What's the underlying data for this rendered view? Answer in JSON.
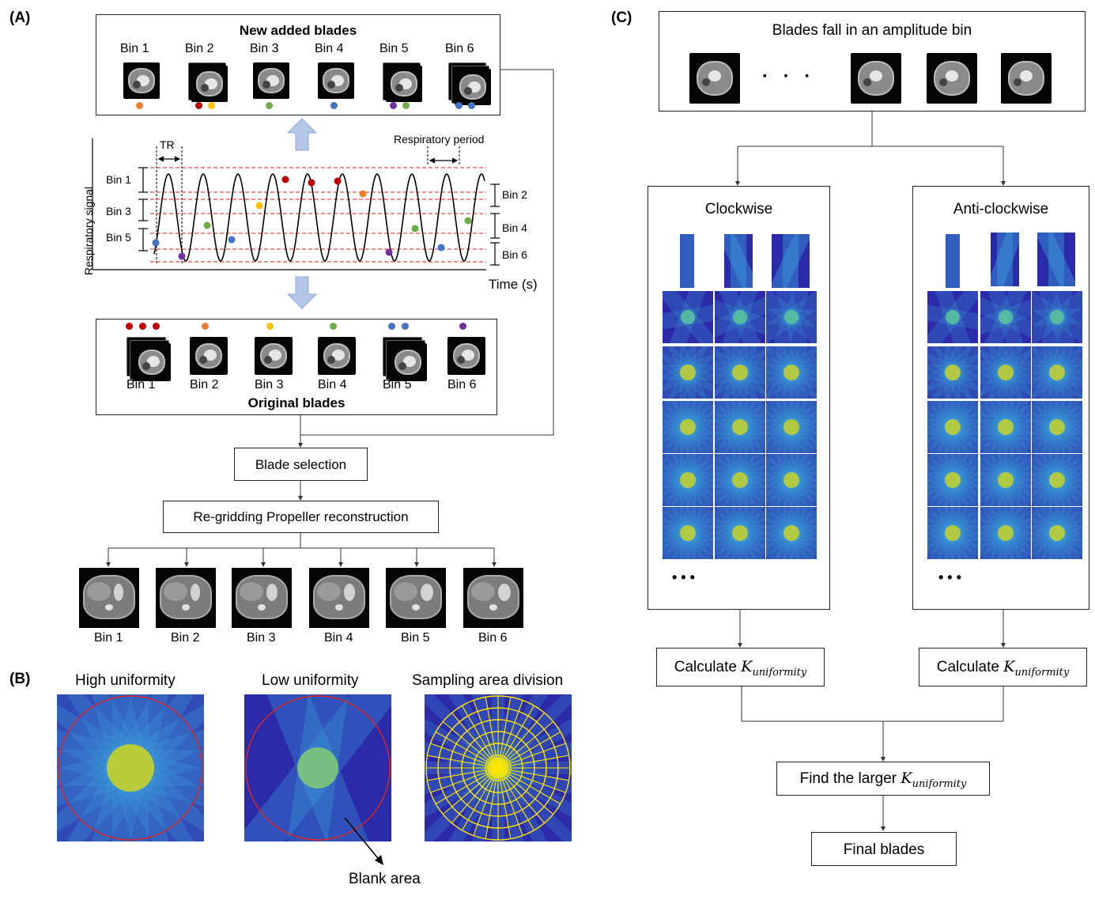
{
  "panels": {
    "a": "(A)",
    "b": "(B)",
    "c": "(C)"
  },
  "panel_a": {
    "new_blades_title": "New added blades",
    "new_bins": [
      "Bin 1",
      "Bin 2",
      "Bin 3",
      "Bin 4",
      "Bin 5",
      "Bin 6"
    ],
    "signal": {
      "ylabel": "Respiratory signal",
      "xlabel": "Time (s)",
      "tr": "TR",
      "period": "Respiratory period",
      "left_bins": [
        "Bin 1",
        "Bin 3",
        "Bin 5"
      ],
      "right_bins": [
        "Bin 2",
        "Bin 4",
        "Bin 6"
      ]
    },
    "original_blades_title": "Original blades",
    "orig_bins": [
      "Bin 1",
      "Bin 2",
      "Bin 3",
      "Bin 4",
      "Bin 5",
      "Bin 6"
    ],
    "blade_selection": "Blade selection",
    "regridding": "Re-gridding Propeller reconstruction",
    "recon_bins": [
      "Bin 1",
      "Bin 2",
      "Bin 3",
      "Bin 4",
      "Bin 5",
      "Bin 6"
    ]
  },
  "panel_b": {
    "high": "High uniformity",
    "low": "Low uniformity",
    "division": "Sampling area division",
    "blank": "Blank area"
  },
  "panel_c": {
    "top_title": "Blades fall in an amplitude bin",
    "ellipsis_dots": "·   ·   ·",
    "clockwise": "Clockwise",
    "anticlockwise": "Anti-clockwise",
    "more": "• • •",
    "calc_prefix": "Calculate ",
    "k_symbol": "K",
    "k_sub": "uniformity",
    "find_prefix": "Find the larger ",
    "final": "Final blades"
  },
  "colors": {
    "red": "#c00000",
    "orange": "#ed7d31",
    "yellow": "#ffc000",
    "green": "#70ad47",
    "blue": "#4472c4",
    "purple": "#7030a0",
    "arrow_fill": "#b4c7e7",
    "dashed": "#d62728",
    "kspace_bg": "#2b2aa8"
  }
}
